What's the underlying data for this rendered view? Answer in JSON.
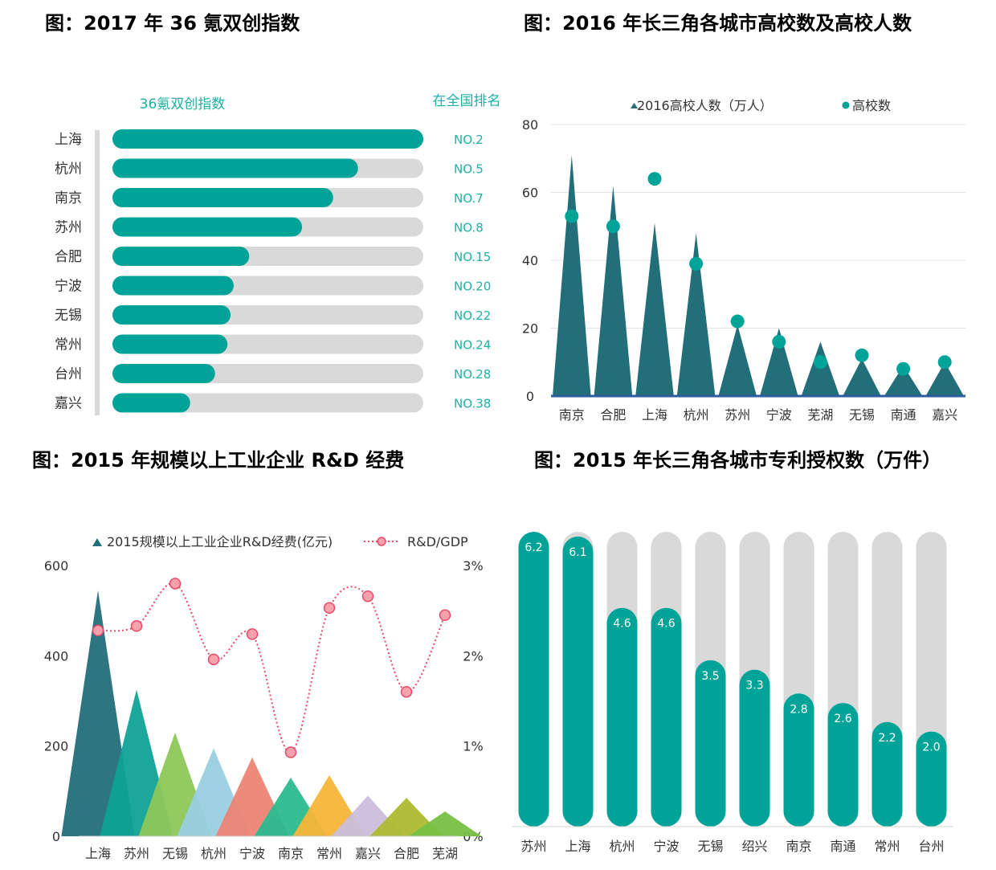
{
  "chart_data": [
    {
      "type": "bar",
      "title": "图：2017 年 36 氪双创指数",
      "legend_index": "36氪双创指数",
      "legend_rank": "在全国排名",
      "categories": [
        "上海",
        "杭州",
        "南京",
        "苏州",
        "合肥",
        "宁波",
        "无锡",
        "常州",
        "台州",
        "嘉兴"
      ],
      "values": [
        100,
        79,
        71,
        61,
        44,
        39,
        38,
        37,
        33,
        25
      ],
      "max": 100,
      "ranks": [
        "NO.2",
        "NO.5",
        "NO.7",
        "NO.8",
        "NO.15",
        "NO.20",
        "NO.22",
        "NO.24",
        "NO.28",
        "NO.38"
      ]
    },
    {
      "type": "area",
      "title": "图：2016 年长三角各城市高校数及高校人数",
      "categories": [
        "南京",
        "合肥",
        "上海",
        "杭州",
        "苏州",
        "宁波",
        "芜湖",
        "无锡",
        "南通",
        "嘉兴"
      ],
      "ylim": [
        0,
        80
      ],
      "yticks": [
        "0",
        "20",
        "40",
        "60",
        "80"
      ],
      "series": [
        {
          "name": "2016高校人数（万人）",
          "values": [
            71,
            62,
            51,
            48,
            21,
            20,
            16,
            11,
            9,
            10
          ]
        },
        {
          "name": "高校数",
          "values": [
            53,
            50,
            64,
            39,
            22,
            16,
            10,
            12,
            8,
            10
          ]
        }
      ]
    },
    {
      "type": "area",
      "title": "图：2015 年规模以上工业企业 R&D 经费",
      "categories": [
        "上海",
        "苏州",
        "无锡",
        "杭州",
        "宁波",
        "南京",
        "常州",
        "嘉兴",
        "合肥",
        "芜湖"
      ],
      "ylim": [
        0,
        600
      ],
      "yticks": [
        "0",
        "200",
        "400",
        "600"
      ],
      "y2ticks": [
        "0%",
        "1%",
        "2%",
        "3%"
      ],
      "y2lim": [
        0,
        3
      ],
      "series": [
        {
          "name": "2015规模以上工业企业R&D经费(亿元)",
          "values": [
            545,
            325,
            230,
            195,
            175,
            130,
            135,
            90,
            85,
            55
          ]
        },
        {
          "name": "R&D/GDP",
          "values": [
            2.28,
            2.33,
            2.8,
            1.96,
            2.24,
            0.93,
            2.53,
            2.66,
            1.6,
            2.45
          ]
        }
      ],
      "colors": [
        "#226E79",
        "#0FA294",
        "#8DC758",
        "#99CFE0",
        "#EB8474",
        "#2CBA8F",
        "#F5B638",
        "#CABEDC",
        "#ACBB31",
        "#76C043"
      ]
    },
    {
      "type": "bar",
      "title": "图：2015 年长三角各城市专利授权数（万件）",
      "categories": [
        "苏州",
        "上海",
        "杭州",
        "宁波",
        "无锡",
        "绍兴",
        "南京",
        "南通",
        "常州",
        "台州"
      ],
      "values": [
        6.2,
        6.1,
        4.6,
        4.6,
        3.5,
        3.3,
        2.8,
        2.6,
        2.2,
        2.0
      ],
      "labels": [
        "6.2",
        "6.1",
        "4.6",
        "4.6",
        "3.5",
        "3.3",
        "2.8",
        "2.6",
        "2.2",
        "2.0"
      ],
      "max": 6.2
    }
  ],
  "colors": {
    "teal": "#00A398",
    "dark_teal": "#226E79",
    "track": "#D9D9D9",
    "pink": "#F27F93",
    "pink_line": "#E84A67",
    "rank_text": "#1FB0A6"
  }
}
